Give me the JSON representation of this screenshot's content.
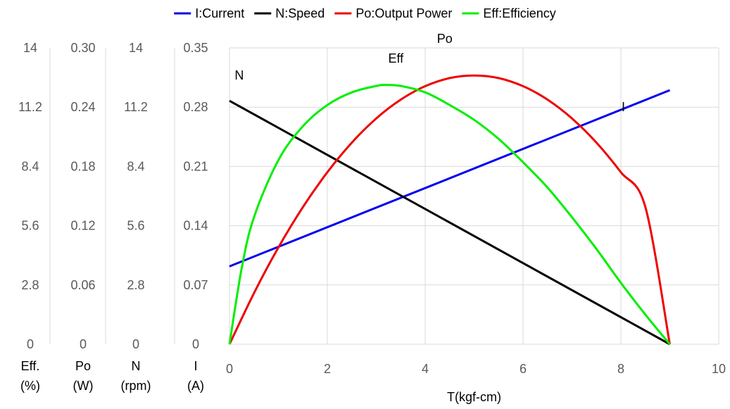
{
  "chart_data": {
    "type": "line",
    "xlabel": "T(kgf-cm)",
    "x_ticks": [
      "0",
      "2",
      "4",
      "6",
      "8",
      "10"
    ],
    "xlim": [
      0,
      10
    ],
    "grid": true,
    "legend_position": "top",
    "series": [
      {
        "name": "I:Current",
        "short": "I",
        "axis": "I",
        "color": "#0000ee",
        "x": [
          0,
          9
        ],
        "y": [
          0.092,
          0.3
        ]
      },
      {
        "name": "N:Speed",
        "short": "N",
        "axis": "N",
        "color": "#000000",
        "x": [
          0,
          9
        ],
        "y": [
          11.5,
          0
        ]
      },
      {
        "name": "Po:Output Power",
        "short": "Po",
        "axis": "Po",
        "color": "#ee0000",
        "x": [
          0,
          0.5,
          1,
          1.5,
          2,
          2.5,
          3,
          3.5,
          4,
          4.5,
          5,
          5.5,
          6,
          6.5,
          7,
          7.5,
          8,
          8.5,
          9
        ],
        "y": [
          0,
          0.0517,
          0.098,
          0.1388,
          0.1741,
          0.2041,
          0.2286,
          0.2476,
          0.2612,
          0.2694,
          0.2721,
          0.2694,
          0.2612,
          0.2476,
          0.2286,
          0.2041,
          0.1741,
          0.1388,
          0
        ]
      },
      {
        "name": "Eff:Efficiency",
        "short": "Eff",
        "axis": "Eff",
        "color": "#00ee00",
        "x": [
          0,
          0.25,
          0.5,
          1,
          1.5,
          2,
          2.5,
          3,
          3.2,
          3.5,
          4,
          4.5,
          5,
          5.5,
          6,
          6.5,
          7,
          7.5,
          8,
          8.5,
          9
        ],
        "y": [
          0,
          3.6,
          6.0,
          8.7,
          10.3,
          11.3,
          11.9,
          12.2,
          12.25,
          12.2,
          11.9,
          11.3,
          10.6,
          9.7,
          8.6,
          7.4,
          6.0,
          4.5,
          2.9,
          1.4,
          0
        ]
      }
    ],
    "y_axes": [
      {
        "id": "Eff",
        "label_line1": "Eff.",
        "label_line2": "(%)",
        "ylim": [
          0,
          14
        ],
        "ticks": [
          "0",
          "2.8",
          "5.6",
          "8.4",
          "11.2",
          "14"
        ]
      },
      {
        "id": "Po",
        "label_line1": "Po",
        "label_line2": "(W)",
        "ylim": [
          0,
          0.3
        ],
        "ticks": [
          "0",
          "0.06",
          "0.12",
          "0.18",
          "0.24",
          "0.30"
        ]
      },
      {
        "id": "N",
        "label_line1": "N",
        "label_line2": "(rpm)",
        "ylim": [
          0,
          14
        ],
        "ticks": [
          "0",
          "2.8",
          "5.6",
          "8.4",
          "11.2",
          "14"
        ]
      },
      {
        "id": "I",
        "label_line1": "I",
        "label_line2": "(A)",
        "ylim": [
          0,
          0.35
        ],
        "ticks": [
          "0",
          "0.07",
          "0.14",
          "0.21",
          "0.28",
          "0.35"
        ]
      }
    ],
    "curve_labels": [
      {
        "text": "N",
        "series": "N:Speed",
        "x": 0.2,
        "y": 12.5
      },
      {
        "text": "Eff",
        "series": "Eff:Efficiency",
        "x": 3.4,
        "y": 13.3
      },
      {
        "text": "Po",
        "series": "Po:Output Power",
        "x": 4.4,
        "y": 0.305
      },
      {
        "text": "I",
        "series": "I:Current",
        "x": 8.05,
        "y": 0.275
      }
    ]
  }
}
